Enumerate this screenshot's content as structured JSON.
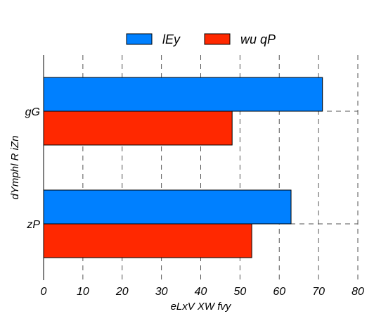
{
  "chart_data": {
    "type": "bar",
    "orientation": "horizontal",
    "title": "",
    "xlabel": "eLxV XW  fvy",
    "ylabel": "dYmphl R iZn",
    "categories": [
      "gG",
      "zP"
    ],
    "series": [
      {
        "name": "lEy",
        "color": "#0080ff",
        "values": [
          71,
          63
        ]
      },
      {
        "name": "wu qP",
        "color": "#ff2800",
        "values": [
          48,
          53
        ]
      }
    ],
    "xlim": [
      0,
      80
    ],
    "xticks": [
      0,
      10,
      20,
      30,
      40,
      50,
      60,
      70,
      80
    ],
    "grid": true,
    "legend_position": "top-center"
  }
}
